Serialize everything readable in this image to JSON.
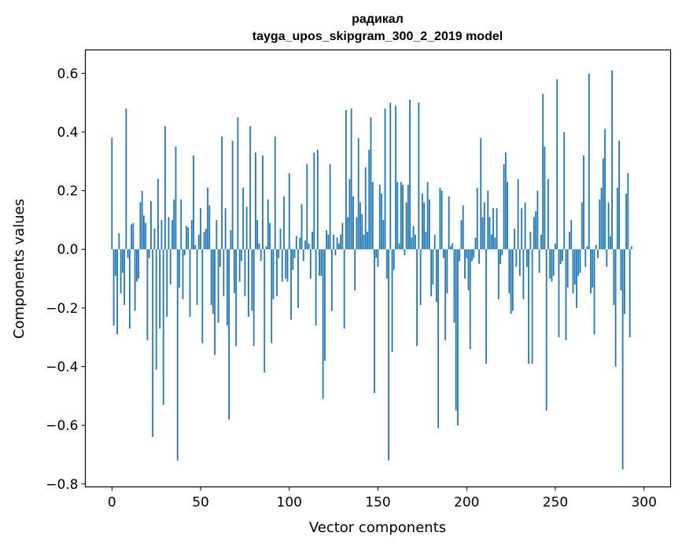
{
  "chart_data": {
    "type": "bar",
    "title": "радикал",
    "subtitle": "tayga_upos_skipgram_300_2_2019 model",
    "xlabel": "Vector components",
    "ylabel": "Components values",
    "xlim": [
      -15,
      315
    ],
    "ylim": [
      -0.81,
      0.68
    ],
    "xticks": [
      0,
      50,
      100,
      150,
      200,
      250,
      300
    ],
    "yticks": [
      -0.8,
      -0.6,
      -0.4,
      -0.2,
      0.0,
      0.2,
      0.4,
      0.6
    ],
    "ytick_labels": [
      "−0.8",
      "−0.6",
      "−0.4",
      "−0.2",
      "0.0",
      "0.2",
      "0.4",
      "0.6"
    ],
    "bar_color": "#1f77b4",
    "values": [
      0.38,
      -0.26,
      -0.09,
      -0.29,
      0.055,
      -0.15,
      -0.08,
      -0.19,
      0.48,
      -0.03,
      -0.27,
      0.085,
      0.09,
      -0.21,
      -0.11,
      -0.1,
      0.16,
      0.2,
      0.115,
      0.09,
      -0.31,
      -0.03,
      0.165,
      -0.64,
      0.07,
      -0.41,
      0.24,
      -0.27,
      0.1,
      -0.53,
      0.42,
      -0.23,
      0.11,
      -0.12,
      0.1,
      0.17,
      0.35,
      -0.72,
      -0.13,
      0.17,
      -0.17,
      -0.02,
      0.08,
      0.075,
      -0.23,
      0.1,
      0.32,
      0.015,
      -0.19,
      0.05,
      0.14,
      -0.32,
      0.06,
      0.07,
      0.21,
      0.15,
      -0.19,
      -0.22,
      -0.36,
      0.1,
      -0.25,
      -0.06,
      0.385,
      -0.16,
      0.14,
      -0.26,
      -0.58,
      0.065,
      0.37,
      -0.15,
      -0.33,
      0.45,
      -0.11,
      -0.04,
      0.21,
      -0.16,
      0.145,
      -0.23,
      0.42,
      -0.21,
      -0.33,
      0.33,
      0.1,
      0.02,
      -0.04,
      0.32,
      -0.42,
      0.01,
      0.17,
      0.09,
      -0.32,
      -0.17,
      0.385,
      -0.16,
      -0.03,
      0.07,
      -0.11,
      0.18,
      -0.1,
      -0.11,
      0.26,
      -0.24,
      -0.07,
      -0.03,
      0.045,
      -0.2,
      0.04,
      0.155,
      -0.04,
      0.03,
      0.29,
      0.02,
      -0.1,
      0.06,
      0.33,
      -0.26,
      0.34,
      -0.09,
      -0.09,
      -0.51,
      -0.38,
      0.065,
      0.05,
      0.29,
      -0.21,
      0.05,
      -0.02,
      0.04,
      0.02,
      0.05,
      0.09,
      -0.27,
      0.475,
      0.11,
      0.24,
      0.48,
      0.18,
      -0.14,
      0.11,
      0.38,
      0.16,
      0.12,
      0.05,
      0.28,
      0.06,
      0.34,
      0.45,
      0.23,
      -0.49,
      -0.03,
      -0.06,
      0.22,
      0.19,
      0.1,
      0.48,
      -0.1,
      -0.72,
      0.5,
      -0.35,
      -0.07,
      0.49,
      0.23,
      0.02,
      0.23,
      0.22,
      -0.02,
      0.16,
      0.22,
      0.51,
      0.04,
      0.08,
      0.05,
      -0.33,
      0.5,
      -0.19,
      0.19,
      0.16,
      0.06,
      0.23,
      0.17,
      -0.16,
      -0.12,
      0.05,
      -0.18,
      -0.61,
      0.21,
      0.2,
      -0.03,
      -0.31,
      -0.15,
      0.18,
      0.01,
      0.02,
      -0.25,
      -0.55,
      -0.6,
      -0.04,
      0.1,
      0.15,
      -0.1,
      -0.03,
      -0.14,
      -0.34,
      -0.04,
      -0.03,
      0.04,
      0.21,
      -0.05,
      0.38,
      0.11,
      0.16,
      -0.39,
      0.2,
      0.11,
      0.05,
      0.14,
      0.04,
      0.14,
      -0.17,
      -0.05,
      -0.02,
      0.29,
      0.33,
      0.23,
      -0.15,
      -0.22,
      -0.21,
      0.07,
      -0.06,
      0.24,
      -0.09,
      0.14,
      -0.17,
      0.16,
      -0.06,
      -0.39,
      0.06,
      -0.39,
      0.11,
      0.13,
      0.2,
      -0.08,
      0.05,
      0.53,
      0.35,
      -0.55,
      0.24,
      -0.1,
      -0.11,
      -0.09,
      0.02,
      0.58,
      -0.3,
      -0.05,
      -0.04,
      0.4,
      -0.31,
      -0.13,
      0.06,
      0.1,
      -0.15,
      -0.12,
      -0.2,
      -0.09,
      -0.08,
      0.16,
      0.32,
      -0.06,
      0.01,
      0.6,
      -0.15,
      -0.13,
      -0.29,
      0.015,
      -0.03,
      0.17,
      0.21,
      0.31,
      0.41,
      -0.06,
      0.16,
      0.045,
      0.61,
      -0.19,
      -0.4,
      0.21,
      0.37,
      -0.14,
      -0.75,
      -0.22,
      0.19,
      0.26,
      -0.3,
      0.01
    ]
  }
}
